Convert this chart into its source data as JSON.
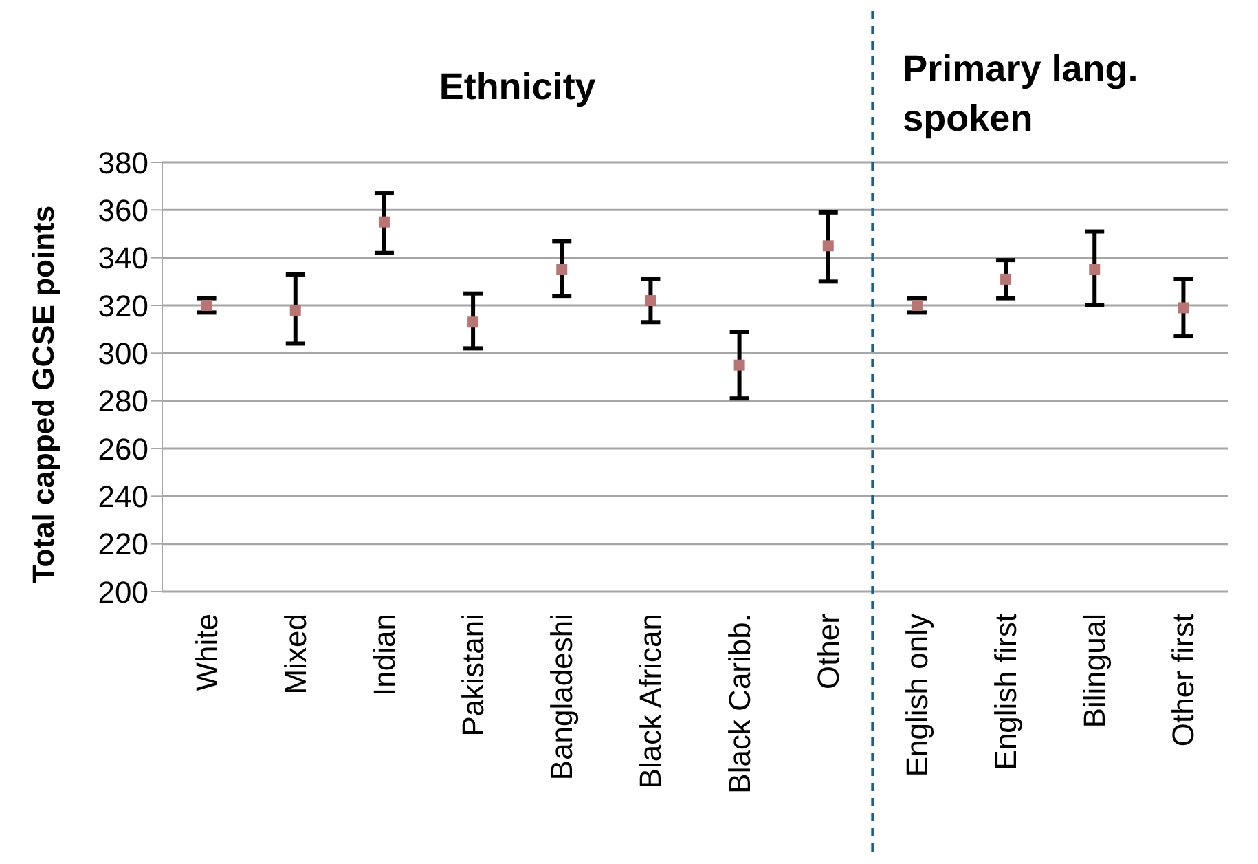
{
  "chart_data": {
    "type": "scatter",
    "ylabel": "Total capped GCSE points",
    "annotations": [
      "Ethnicity",
      "Primary lang. spoken"
    ],
    "categories": [
      "White",
      "Mixed",
      "Indian",
      "Pakistani",
      "Bangladeshi",
      "Black African",
      "Black Caribb.",
      "Other",
      "English only",
      "English first",
      "Bilingual",
      "Other first"
    ],
    "series": [
      {
        "color": "#b97474",
        "values": [
          320,
          318,
          355,
          313,
          335,
          322,
          295,
          345,
          320,
          331,
          335,
          319
        ],
        "errors": [
          [
            317,
            323
          ],
          [
            304,
            333
          ],
          [
            342,
            367
          ],
          [
            302,
            325
          ],
          [
            324,
            347
          ],
          [
            313,
            331
          ],
          [
            281,
            309
          ],
          [
            330,
            359
          ],
          [
            317,
            323
          ],
          [
            323,
            339
          ],
          [
            320,
            351
          ],
          [
            307,
            331
          ]
        ]
      }
    ],
    "ylim": [
      200,
      380
    ],
    "yticks": [
      200,
      220,
      240,
      260,
      280,
      300,
      320,
      340,
      360,
      380
    ],
    "grid": "y",
    "marker": "square",
    "legend": false,
    "ref_lines": [
      {
        "axis": "x",
        "value": "English only",
        "color": "#1f5f8b",
        "line_style": "dashed"
      }
    ]
  }
}
